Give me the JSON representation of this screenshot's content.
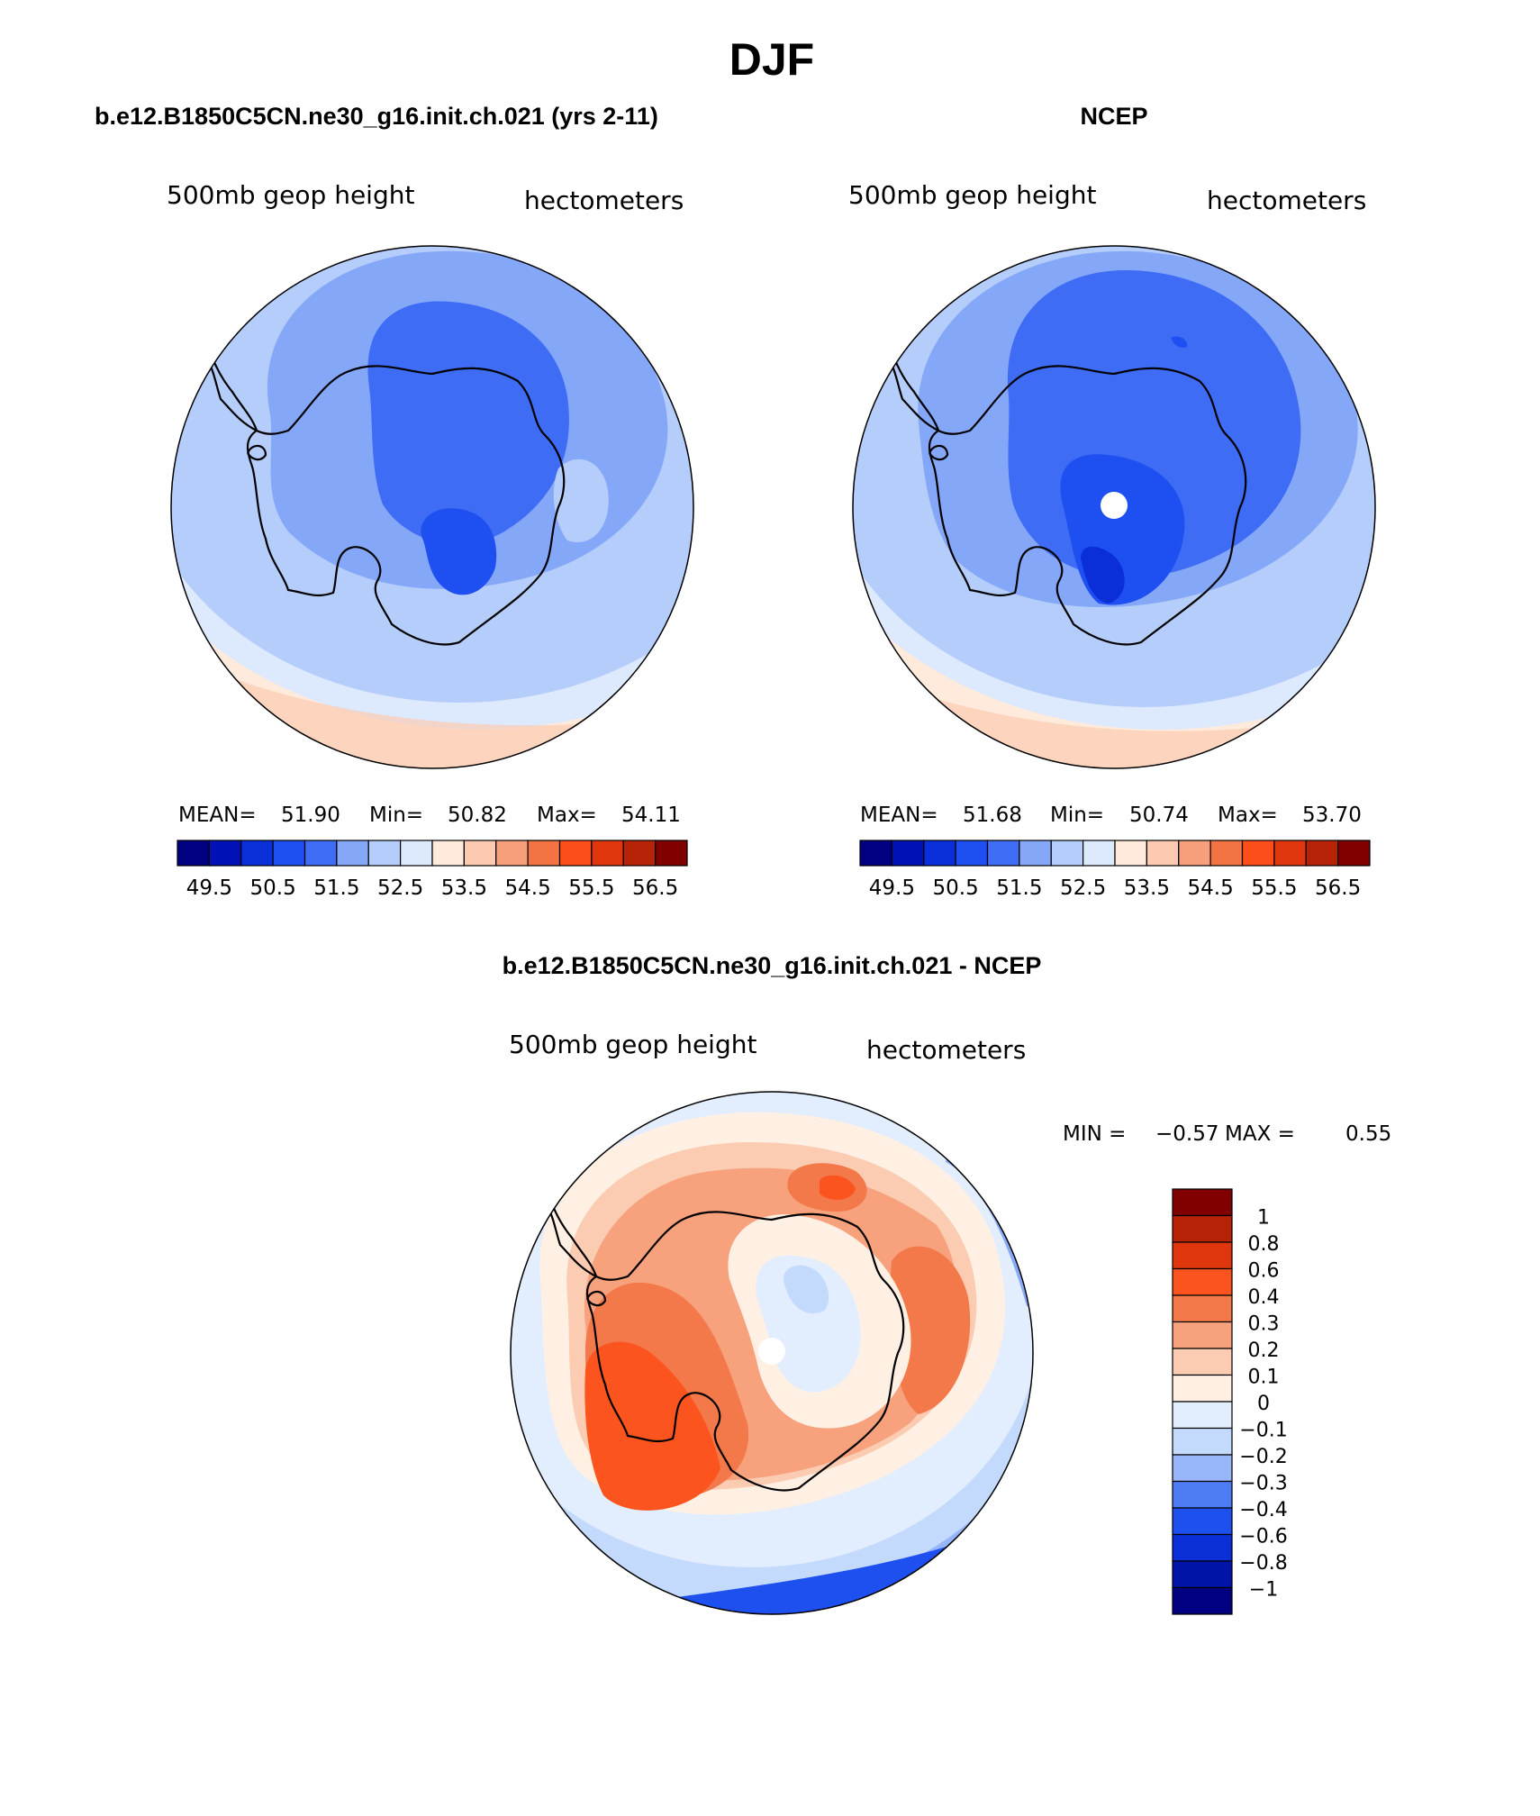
{
  "title": "DJF",
  "colors": {
    "abs": [
      "#000080",
      "#0012b6",
      "#0a2ed8",
      "#1e4ff0",
      "#3f6cf5",
      "#85a7f8",
      "#b5cdfb",
      "#dde9fd",
      "#ffeadb",
      "#fccab1",
      "#f79f7b",
      "#f37342",
      "#fb4e1a",
      "#e0360e",
      "#b72307",
      "#800000"
    ],
    "diff": [
      "#000080",
      "#0015a8",
      "#0a2fd6",
      "#1e50ef",
      "#4d7cf4",
      "#97b5f9",
      "#c4dafd",
      "#e2edfe",
      "#fff0e3",
      "#fbccb2",
      "#f7a17d",
      "#f3784a",
      "#fb541f",
      "#e0360e",
      "#b72307",
      "#800000"
    ]
  },
  "panel_left": {
    "title": "b.e12.B1850C5CN.ne30_g16.init.ch.021 (yrs 2-11)",
    "var_label": "500mb geop height",
    "units": "hectometers",
    "mean_label": "MEAN=",
    "mean_value": "51.90",
    "min_label": "Min=",
    "min_value": "50.82",
    "max_label": "Max=",
    "max_value": "54.11",
    "colorbar_labels": [
      "49.5",
      "50.5",
      "51.5",
      "52.5",
      "53.5",
      "54.5",
      "55.5",
      "56.5"
    ]
  },
  "panel_right": {
    "title": "NCEP",
    "var_label": "500mb geop height",
    "units": "hectometers",
    "mean_label": "MEAN=",
    "mean_value": "51.68",
    "min_label": "Min=",
    "min_value": "50.74",
    "max_label": "Max=",
    "max_value": "53.70",
    "colorbar_labels": [
      "49.5",
      "50.5",
      "51.5",
      "52.5",
      "53.5",
      "54.5",
      "55.5",
      "56.5"
    ]
  },
  "panel_diff": {
    "title": "b.e12.B1850C5CN.ne30_g16.init.ch.021 - NCEP",
    "var_label": "500mb geop height",
    "units": "hectometers",
    "min_label": "MIN =",
    "min_value": "−0.57",
    "max_label": "MAX =",
    "max_value": "0.55",
    "colorbar_labels": [
      "1",
      "0.8",
      "0.6",
      "0.4",
      "0.3",
      "0.2",
      "0.1",
      "0",
      "−0.1",
      "−0.2",
      "−0.3",
      "−0.4",
      "−0.6",
      "−0.8",
      "−1"
    ]
  }
}
